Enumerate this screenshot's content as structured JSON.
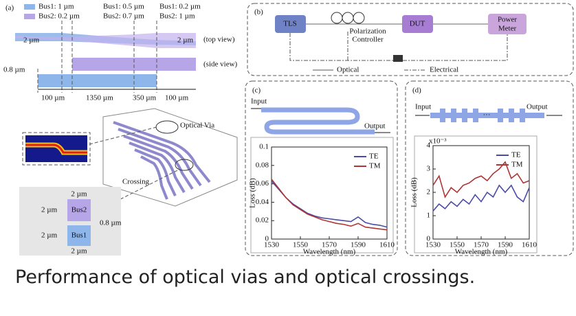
{
  "figure": {
    "a": {
      "label": "(a)",
      "legend": [
        "Bus1: 1 µm",
        "Bus2: 0.2 µm",
        "Bus1: 0.5 µm",
        "Bus2: 0.7 µm",
        "Bus1: 0.2 µm",
        "Bus2: 1 µm"
      ],
      "width_top": [
        "2 µm",
        "2 µm"
      ],
      "top_view": "(top view)",
      "side_view": "(side view)",
      "gap": "0.8 µm",
      "lengths": [
        "100 µm",
        "1350 µm",
        "350 µm",
        "100 µm"
      ],
      "via": "Optical Via",
      "crossing": "Crossing",
      "section": {
        "widths": [
          "2 µm",
          "2 µm"
        ],
        "heights": [
          "2 µm",
          "2 µm"
        ],
        "bus2": "Bus2",
        "bus1": "Bus1",
        "gap": "0.8 µm"
      }
    },
    "b": {
      "label": "(b)",
      "tls": "TLS",
      "pc": [
        "Polarization",
        "Controller"
      ],
      "dut": "DUT",
      "pm": [
        "Power",
        "Meter"
      ],
      "optical": "Optical",
      "electrical": "Electrical"
    },
    "c": {
      "label": "(c)",
      "input": "Input",
      "output": "Output"
    },
    "d": {
      "label": "(d)",
      "input": "Input",
      "output": "Output",
      "dots": "···"
    },
    "caption": "Performance of optical vias and optical crossings."
  },
  "chart_data": [
    {
      "type": "line",
      "xlabel": "Wavelength (nm)",
      "ylabel": "Loss (dB)",
      "x": [
        1530,
        1535,
        1540,
        1545,
        1550,
        1555,
        1560,
        1565,
        1570,
        1575,
        1580,
        1585,
        1590,
        1595,
        1600,
        1605,
        1610
      ],
      "series": [
        {
          "name": "TE",
          "color": "#4a4aa8",
          "values": [
            0.063,
            0.054,
            0.045,
            0.038,
            0.033,
            0.028,
            0.025,
            0.023,
            0.022,
            0.021,
            0.02,
            0.019,
            0.024,
            0.018,
            0.016,
            0.015,
            0.013
          ]
        },
        {
          "name": "TM",
          "color": "#b03434",
          "values": [
            0.065,
            0.055,
            0.045,
            0.037,
            0.032,
            0.027,
            0.024,
            0.021,
            0.019,
            0.017,
            0.016,
            0.014,
            0.017,
            0.013,
            0.012,
            0.011,
            0.01
          ]
        }
      ],
      "xlim": [
        1530,
        1610
      ],
      "xticks": [
        1530,
        1550,
        1570,
        1590,
        1610
      ],
      "ylim": [
        0,
        0.1
      ],
      "yticks": [
        0,
        0.02,
        0.04,
        0.06,
        0.08,
        0.1
      ]
    },
    {
      "type": "line",
      "xlabel": "Wavelength (nm)",
      "ylabel": "Loss (dB)",
      "y_multiplier": "x10⁻³",
      "x": [
        1530,
        1535,
        1540,
        1545,
        1550,
        1555,
        1560,
        1565,
        1570,
        1575,
        1580,
        1585,
        1590,
        1595,
        1600,
        1605,
        1610
      ],
      "series": [
        {
          "name": "TE",
          "color": "#4a4aa8",
          "values": [
            1.2,
            1.5,
            1.3,
            1.6,
            1.4,
            1.7,
            1.5,
            1.9,
            1.6,
            2.0,
            1.8,
            2.3,
            2.0,
            2.3,
            1.8,
            1.6,
            2.2
          ]
        },
        {
          "name": "TM",
          "color": "#b03434",
          "values": [
            2.3,
            2.7,
            1.8,
            2.2,
            2.0,
            2.3,
            2.4,
            2.6,
            2.7,
            2.5,
            2.8,
            3.0,
            3.3,
            2.6,
            2.8,
            2.4,
            2.5
          ]
        }
      ],
      "xlim": [
        1530,
        1610
      ],
      "xticks": [
        1530,
        1550,
        1570,
        1590,
        1610
      ],
      "ylim": [
        0,
        4
      ],
      "yticks": [
        0,
        1,
        2,
        3,
        4
      ]
    }
  ]
}
